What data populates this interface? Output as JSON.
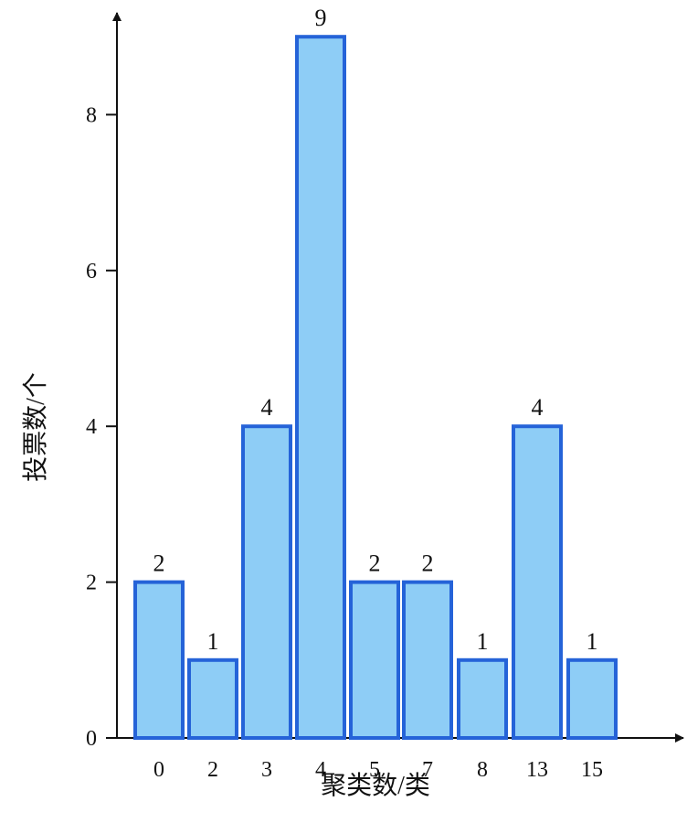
{
  "chart_data": {
    "type": "bar",
    "categories": [
      "0",
      "2",
      "3",
      "4",
      "5",
      "7",
      "8",
      "13",
      "15"
    ],
    "values": [
      2,
      1,
      4,
      9,
      2,
      2,
      1,
      4,
      1
    ],
    "data_labels": [
      "2",
      "1",
      "4",
      "9",
      "2",
      "2",
      "1",
      "4",
      "1"
    ],
    "xlabel": "聚类数/类",
    "ylabel": "投票数/个",
    "ylim": [
      0,
      9
    ],
    "yticks": [
      0,
      2,
      4,
      6,
      8
    ],
    "ytick_labels": [
      "0",
      "2",
      "4",
      "6",
      "8"
    ],
    "grid": false,
    "bar_fill": "#8ecdf6",
    "bar_stroke": "#2563d8"
  }
}
